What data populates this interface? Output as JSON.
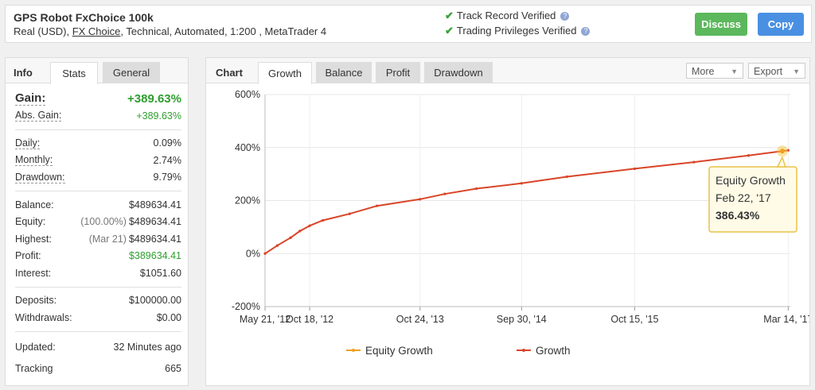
{
  "account": {
    "name": "GPS Robot FxChoice 100k",
    "meta_prefix": "Real (USD), ",
    "broker": "FX Choice",
    "meta_suffix": ", Technical, Automated, 1:200 , MetaTrader 4"
  },
  "verification": {
    "track_record": "Track Record Verified",
    "trading_privileges": "Trading Privileges Verified",
    "help_icon": "question-icon",
    "check_icon": "check-icon"
  },
  "buttons": {
    "discuss": "Discuss",
    "copy": "Copy"
  },
  "colors": {
    "green_button": "#5cb85c",
    "blue_button": "#4a90e2",
    "equity_line": "#f0a020",
    "growth_line": "#d9452a",
    "gain_green": "#2e9e2e"
  },
  "info": {
    "tabs": [
      "Info",
      "Stats",
      "General"
    ],
    "gain": {
      "label": "Gain:",
      "value": "+389.63%"
    },
    "abs_gain": {
      "label": "Abs. Gain:",
      "value": "+389.63%"
    },
    "daily": {
      "label": "Daily:",
      "value": "0.09%"
    },
    "monthly": {
      "label": "Monthly:",
      "value": "2.74%"
    },
    "drawdown": {
      "label": "Drawdown:",
      "value": "9.79%"
    },
    "balance": {
      "label": "Balance:",
      "value": "$489634.41"
    },
    "equity": {
      "label": "Equity:",
      "sub": "(100.00%)",
      "value": "$489634.41"
    },
    "highest": {
      "label": "Highest:",
      "sub": "(Mar 21)",
      "value": "$489634.41"
    },
    "profit": {
      "label": "Profit:",
      "value": "$389634.41"
    },
    "interest": {
      "label": "Interest:",
      "value": "$1051.60"
    },
    "deposits": {
      "label": "Deposits:",
      "value": "$100000.00"
    },
    "withdrawals": {
      "label": "Withdrawals:",
      "value": "$0.00"
    },
    "updated": {
      "label": "Updated:",
      "value": "32 Minutes ago"
    },
    "tracking": {
      "label": "Tracking",
      "value": "665"
    }
  },
  "chart_panel": {
    "title": "Chart",
    "tabs": [
      "Growth",
      "Balance",
      "Profit",
      "Drawdown"
    ],
    "more": "More",
    "export": "Export"
  },
  "chart_data": {
    "type": "line",
    "title": "",
    "xlabel": "",
    "ylabel": "",
    "ylim": [
      -200,
      600
    ],
    "yticks": [
      -200,
      0,
      200,
      400,
      600
    ],
    "ytick_labels": [
      "-200%",
      "0%",
      "200%",
      "400%",
      "600%"
    ],
    "x_tick_labels": [
      "May 21, '12",
      "Oct 18, '12",
      "Oct 24, '13",
      "Sep 30, '14",
      "Oct 15, '15",
      "Mar 14, '17"
    ],
    "x_tick_dates": [
      "2012-05-21",
      "2012-10-18",
      "2013-10-24",
      "2014-09-30",
      "2015-10-15",
      "2017-03-14"
    ],
    "grid": true,
    "legend_position": "bottom",
    "series": [
      {
        "name": "Equity Growth",
        "x": [
          "2012-05-21",
          "2012-07-01",
          "2012-08-15",
          "2012-09-15",
          "2012-10-18",
          "2012-12-01",
          "2013-03-01",
          "2013-06-01",
          "2013-10-24",
          "2014-01-15",
          "2014-05-01",
          "2014-09-30",
          "2015-03-01",
          "2015-10-15",
          "2016-05-01",
          "2016-11-01",
          "2017-02-22"
        ],
        "values": [
          0,
          30,
          60,
          85,
          105,
          125,
          150,
          180,
          205,
          225,
          245,
          265,
          290,
          320,
          345,
          370,
          386.43
        ]
      },
      {
        "name": "Growth",
        "x": [
          "2012-05-21",
          "2012-07-01",
          "2012-08-15",
          "2012-09-15",
          "2012-10-18",
          "2012-12-01",
          "2013-03-01",
          "2013-06-01",
          "2013-10-24",
          "2014-01-15",
          "2014-05-01",
          "2014-09-30",
          "2015-03-01",
          "2015-10-15",
          "2016-05-01",
          "2016-11-01",
          "2017-03-14"
        ],
        "values": [
          0,
          30,
          60,
          85,
          105,
          125,
          150,
          180,
          205,
          225,
          245,
          265,
          290,
          320,
          345,
          370,
          389.63
        ]
      }
    ],
    "tooltip": {
      "title": "Equity Growth",
      "date": "Feb 22, '17",
      "value": "386.43%"
    }
  }
}
